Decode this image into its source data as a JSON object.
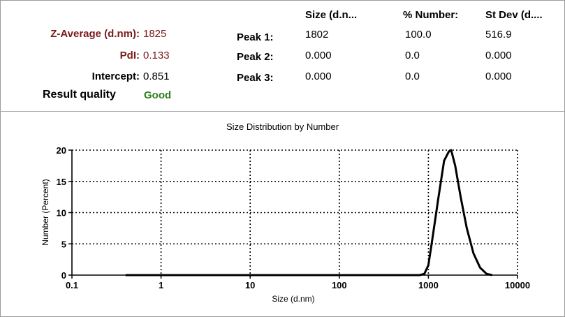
{
  "summary": {
    "z_average_label": "Z-Average (d.nm):",
    "z_average_value": "1825",
    "pdi_label": "PdI:",
    "pdi_value": "0.133",
    "intercept_label": "Intercept:",
    "intercept_value": "0.851",
    "quality_label": "Result quality",
    "quality_value": "Good"
  },
  "peaks": {
    "headers": [
      "Size (d.n...",
      "% Number:",
      "St Dev (d...."
    ],
    "rows": [
      {
        "label": "Peak 1:",
        "size": "1802",
        "number": "100.0",
        "stdev": "516.9"
      },
      {
        "label": "Peak 2:",
        "size": "0.000",
        "number": "0.0",
        "stdev": "0.000"
      },
      {
        "label": "Peak 3:",
        "size": "0.000",
        "number": "0.0",
        "stdev": "0.000"
      }
    ]
  },
  "chart_data": {
    "type": "line",
    "title": "Size Distribution by Number",
    "xlabel": "Size (d.nm)",
    "ylabel": "Number (Percent)",
    "x_scale": "log",
    "xlim": [
      0.1,
      10000
    ],
    "ylim": [
      0,
      20
    ],
    "x_ticks": [
      "0.1",
      "1",
      "10",
      "100",
      "1000",
      "10000"
    ],
    "y_ticks": [
      "0",
      "5",
      "10",
      "15",
      "20"
    ],
    "grid": true,
    "series": [
      {
        "x": [
          0.4,
          800,
          900,
          1000,
          1100,
          1300,
          1500,
          1700,
          1800,
          2000,
          2300,
          2700,
          3200,
          3800,
          4500,
          5200
        ],
        "values": [
          0,
          0,
          0.2,
          1.6,
          5.5,
          12.5,
          18.3,
          19.8,
          20,
          17.5,
          12.5,
          7.5,
          3.5,
          1.2,
          0.2,
          0
        ]
      }
    ]
  }
}
